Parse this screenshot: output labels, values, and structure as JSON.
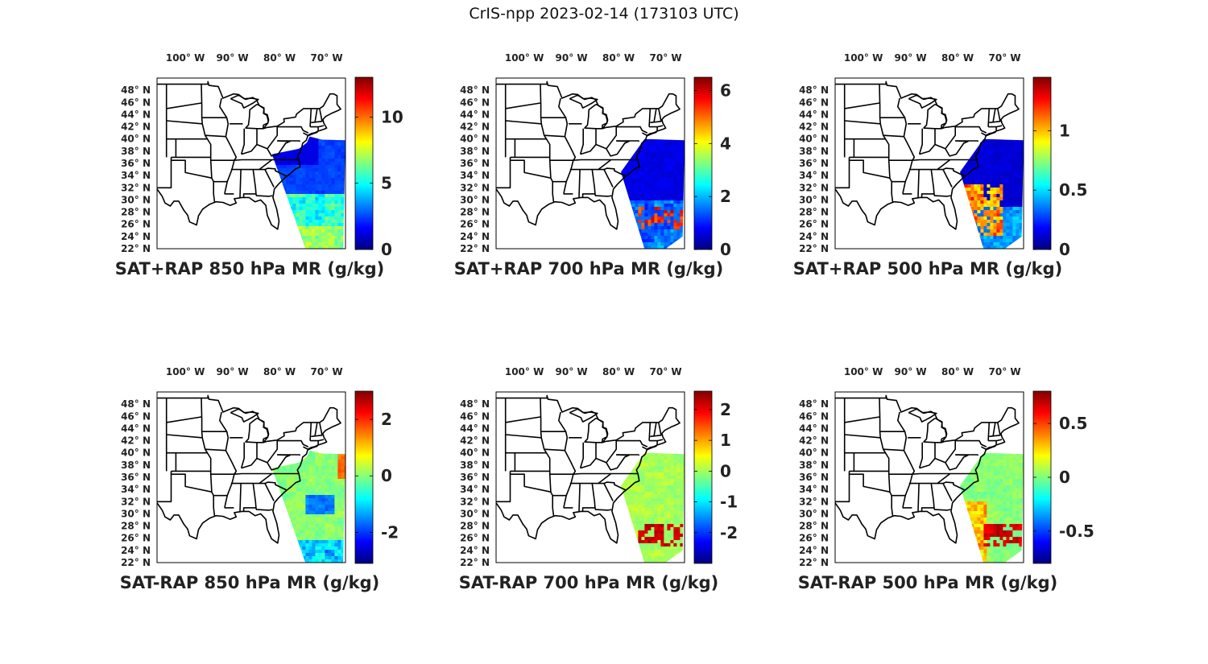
{
  "figure": {
    "title": "CrIS-npp 2023-02-14 (173103 UTC)"
  },
  "lon_ticks": [
    "100° W",
    "90° W",
    "80° W",
    "70° W"
  ],
  "lat_ticks": [
    "48° N",
    "46° N",
    "44° N",
    "42° N",
    "40° N",
    "38° N",
    "36° N",
    "34° N",
    "32° N",
    "30° N",
    "28° N",
    "26° N",
    "24° N",
    "22° N"
  ],
  "colormap": {
    "name": "jet",
    "stops": [
      "#00007f",
      "#0000ff",
      "#007fff",
      "#00ffff",
      "#7fff7f",
      "#ffff00",
      "#ff7f00",
      "#ff0000",
      "#7f0000"
    ]
  },
  "chart_data": [
    {
      "type": "heatmap",
      "title": "SAT+RAP 850 hPa MR (g/kg)",
      "clim": [
        0,
        13
      ],
      "colorbar_ticks": [
        "0",
        "5",
        "10"
      ],
      "colorbar_values": [
        0,
        5,
        10
      ]
    },
    {
      "type": "heatmap",
      "title": "SAT+RAP 700 hPa MR (g/kg)",
      "clim": [
        0,
        6.5
      ],
      "colorbar_ticks": [
        "0",
        "2",
        "4",
        "6"
      ],
      "colorbar_values": [
        0,
        2,
        4,
        6
      ]
    },
    {
      "type": "heatmap",
      "title": "SAT+RAP 500 hPa MR (g/kg)",
      "clim": [
        0,
        1.45
      ],
      "colorbar_ticks": [
        "0",
        "0.5",
        "1"
      ],
      "colorbar_values": [
        0,
        0.5,
        1
      ]
    },
    {
      "type": "heatmap",
      "title": "SAT-RAP 850 hPa MR (g/kg)",
      "clim": [
        -3.1,
        3.0
      ],
      "colorbar_ticks": [
        "-2",
        "0",
        "2"
      ],
      "colorbar_values": [
        -2,
        0,
        2
      ]
    },
    {
      "type": "heatmap",
      "title": "SAT-RAP 700 hPa MR (g/kg)",
      "clim": [
        -3.0,
        2.6
      ],
      "colorbar_ticks": [
        "-2",
        "-1",
        "0",
        "1",
        "2"
      ],
      "colorbar_values": [
        -2,
        -1,
        0,
        1,
        2
      ]
    },
    {
      "type": "heatmap",
      "title": "SAT-RAP 500 hPa MR (g/kg)",
      "clim": [
        -0.8,
        0.8
      ],
      "colorbar_ticks": [
        "-0.5",
        "0",
        "0.5"
      ],
      "colorbar_values": [
        -0.5,
        0,
        0.5
      ]
    }
  ]
}
